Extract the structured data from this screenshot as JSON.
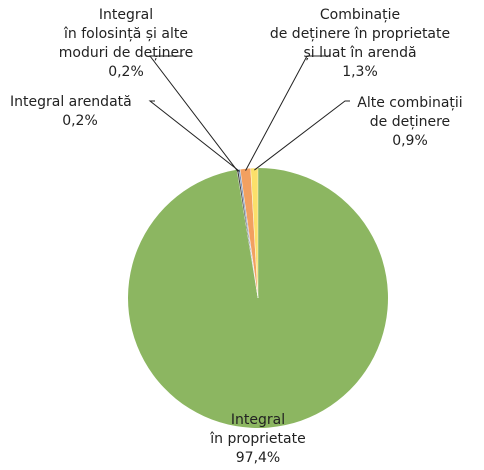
{
  "chart_data": {
    "type": "pie",
    "categories": [
      [
        "Integral",
        "în proprietate"
      ],
      [
        "Integral",
        "în folosință și alte",
        "moduri de deținere"
      ],
      [
        "Integral arendată"
      ],
      [
        "Combinație",
        "de deținere în proprietate",
        "și luat în arendă"
      ],
      [
        "Alte combinații",
        "de deținere"
      ]
    ],
    "values": [
      97.4,
      0.2,
      0.2,
      1.3,
      0.9
    ],
    "value_labels": [
      "97,4%",
      "0,2%",
      "0,2%",
      "1,3%",
      "0,9%"
    ],
    "colors": [
      "#8cb661",
      "#3a3a3a",
      "#6f8fbf",
      "#f2a060",
      "#fbe06a"
    ]
  }
}
